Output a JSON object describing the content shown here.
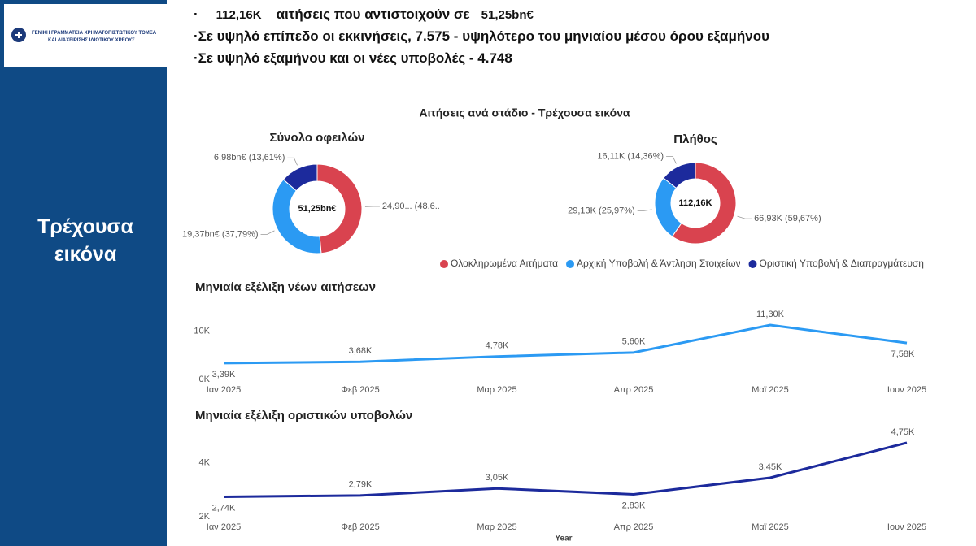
{
  "sidebar": {
    "logo_lines": [
      "ΓΕΝΙΚΗ ΓΡΑΜΜΑΤΕΙΑ ΧΡΗΜΑΤΟΠΙΣΤΩΤΙΚΟΥ ΤΟΜΕΑ",
      "ΚΑΙ ΔΙΑΧΕΙΡΙΣΗΣ ΙΔΙΩΤΙΚΟΥ ΧΡΕΟΥΣ"
    ],
    "section": "Τρέχουσα εικόνα"
  },
  "header": {
    "line1": [
      "112,16K",
      "αιτήσεις που αντιστοιχούν σε",
      "51,25bn€"
    ],
    "line2": "Σε υψηλό επίπεδο οι εκκινήσεις, 7.575 -  υψηλότερο του μηνιαίου μέσου όρου εξαμήνου",
    "line3": "Σε υψηλό εξαμήνου και οι νέες υποβολές - 4.748"
  },
  "donuts_title": "Αιτήσεις ανά στάδιο - Τρέχουσα εικόνα",
  "chart_data": [
    {
      "type": "donut",
      "title": "Σύνολο οφειλών",
      "center_label": "51,25bn€",
      "categories": [
        "Ολοκληρωμένα Αιτήματα",
        "Αρχική Υποβολή & Άντληση Στοιχείων",
        "Οριστική Υποβολή & Διαπραγμάτευση"
      ],
      "colors": [
        "#d9434f",
        "#2b9af3",
        "#1c2a9c"
      ],
      "values": [
        24.9,
        19.37,
        6.98
      ],
      "value_labels": [
        "24,90... (48,6..",
        "19,37bn€ (37,79%)",
        "6,98bn€ (13,61%)"
      ]
    },
    {
      "type": "donut",
      "title": "Πλήθος",
      "center_label": "112,16K",
      "colors": [
        "#d9434f",
        "#2b9af3",
        "#1c2a9c"
      ],
      "values": [
        66.93,
        29.13,
        16.11
      ],
      "value_labels": [
        "66,93K (59,67%)",
        "29,13K (25,97%)",
        "16,11K (14,36%)"
      ]
    },
    {
      "type": "line",
      "title": "Μηνιαία εξέλιξη νέων αιτήσεων",
      "categories": [
        "Ιαν 2025",
        "Φεβ 2025",
        "Μαρ 2025",
        "Απρ 2025",
        "Μαϊ 2025",
        "Ιουν 2025"
      ],
      "color": "#2b9af3",
      "values": [
        3.39,
        3.68,
        4.78,
        5.6,
        11.3,
        7.58
      ],
      "value_labels": [
        "3,39K",
        "3,68K",
        "4,78K",
        "5,60K",
        "11,30K",
        "7,58K"
      ],
      "ylim": [
        0,
        13
      ],
      "yticks": [
        {
          "value": 0,
          "label": "0K"
        },
        {
          "value": 10,
          "label": "10K"
        }
      ],
      "grid": false
    },
    {
      "type": "line",
      "title": "Μηνιαία εξέλιξη οριστικών υποβολών",
      "xlabel": "Year",
      "categories": [
        "Ιαν 2025",
        "Φεβ 2025",
        "Μαρ 2025",
        "Απρ 2025",
        "Μαϊ 2025",
        "Ιουν 2025"
      ],
      "color": "#1c2a9c",
      "values": [
        2.74,
        2.79,
        3.05,
        2.83,
        3.45,
        4.75
      ],
      "value_labels": [
        "2,74K",
        "2,79K",
        "3,05K",
        "2,83K",
        "3,45K",
        "4,75K"
      ],
      "ylim": [
        2,
        5.2
      ],
      "yticks": [
        {
          "value": 2,
          "label": "2K"
        },
        {
          "value": 4,
          "label": "4K"
        }
      ],
      "grid": false
    }
  ]
}
